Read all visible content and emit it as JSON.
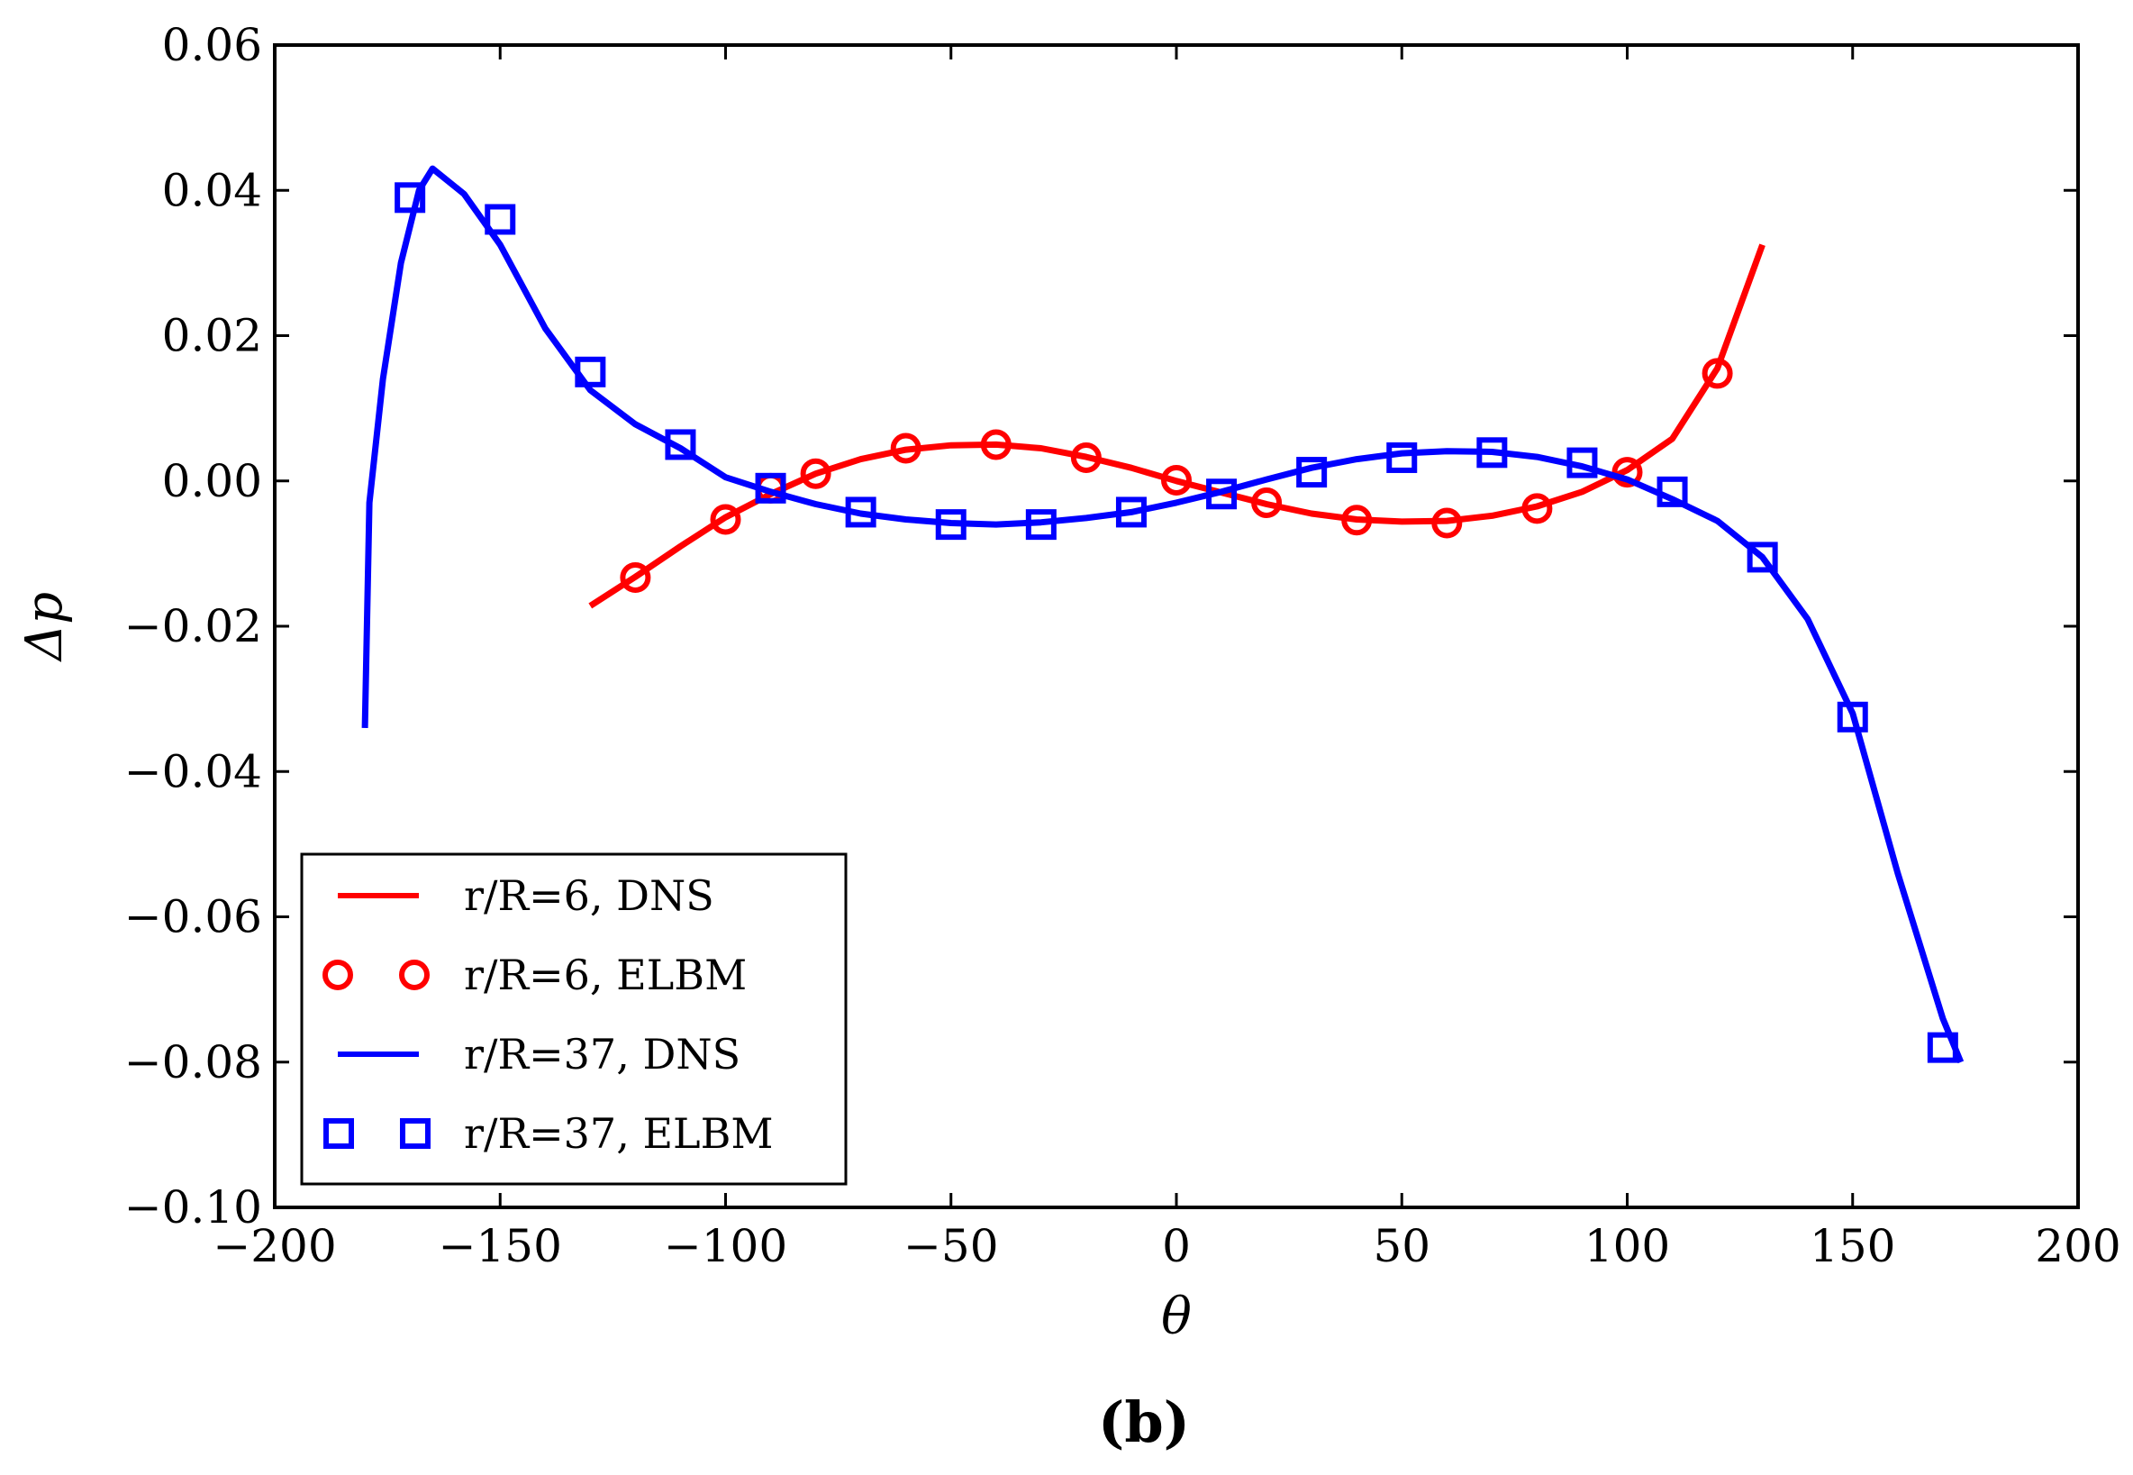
{
  "caption": "(b)",
  "chart_data": {
    "type": "line",
    "title": "",
    "xlabel": "θ",
    "ylabel": "Δp",
    "xlim": [
      -200,
      200
    ],
    "ylim": [
      -0.1,
      0.06
    ],
    "xticks": [
      -200,
      -150,
      -100,
      -50,
      0,
      50,
      100,
      150,
      200
    ],
    "xtick_labels": [
      "−200",
      "−150",
      "−100",
      "−50",
      "0",
      "50",
      "100",
      "150",
      "200"
    ],
    "yticks": [
      0.06,
      0.04,
      0.02,
      0.0,
      -0.02,
      -0.04,
      -0.06,
      -0.08,
      -0.1
    ],
    "ytick_labels": [
      "0.06",
      "0.04",
      "0.02",
      "0.00",
      "−0.02",
      "−0.04",
      "−0.06",
      "−0.08",
      "−0.10"
    ],
    "grid": false,
    "legend_position": "lower-left",
    "series": [
      {
        "name": "r/R=6, DNS",
        "style": "line",
        "color": "#ff0000",
        "x": [
          -130,
          -120,
          -110,
          -100,
          -90,
          -80,
          -70,
          -60,
          -50,
          -40,
          -30,
          -20,
          -10,
          0,
          10,
          20,
          30,
          40,
          50,
          60,
          70,
          80,
          90,
          100,
          110,
          120,
          130
        ],
        "y": [
          -0.0172,
          -0.0132,
          -0.009,
          -0.005,
          -0.0018,
          0.001,
          0.003,
          0.0043,
          0.0049,
          0.005,
          0.0045,
          0.0033,
          0.0018,
          0.0,
          -0.0016,
          -0.0032,
          -0.0045,
          -0.0053,
          -0.0056,
          -0.0055,
          -0.0048,
          -0.0035,
          -0.0015,
          0.0015,
          0.0058,
          0.0155,
          0.0325
        ]
      },
      {
        "name": "r/R=6, ELBM",
        "style": "circle",
        "color": "#ff0000",
        "x": [
          -120,
          -100,
          -90,
          -80,
          -60,
          -40,
          -20,
          0,
          20,
          40,
          60,
          80,
          100,
          120
        ],
        "y": [
          -0.0133,
          -0.0053,
          -0.001,
          0.001,
          0.0045,
          0.005,
          0.0032,
          0.0001,
          -0.003,
          -0.0054,
          -0.0058,
          -0.0038,
          0.0012,
          0.0148
        ]
      },
      {
        "name": "r/R=37, DNS",
        "style": "line",
        "color": "#0000ff",
        "x": [
          -180,
          -179,
          -176,
          -172,
          -168,
          -165,
          -162,
          -158,
          -150,
          -140,
          -130,
          -120,
          -110,
          -100,
          -90,
          -80,
          -70,
          -60,
          -50,
          -40,
          -30,
          -20,
          -10,
          0,
          10,
          20,
          30,
          40,
          50,
          60,
          70,
          80,
          90,
          100,
          110,
          120,
          130,
          140,
          150,
          160,
          170,
          174
        ],
        "y": [
          -0.034,
          -0.003,
          0.014,
          0.03,
          0.04,
          0.043,
          0.0415,
          0.0395,
          0.0325,
          0.021,
          0.0125,
          0.0078,
          0.0045,
          0.0005,
          -0.0015,
          -0.0032,
          -0.0045,
          -0.0053,
          -0.0058,
          -0.006,
          -0.0057,
          -0.0051,
          -0.0043,
          -0.003,
          -0.0015,
          0.0002,
          0.0018,
          0.003,
          0.0038,
          0.0041,
          0.004,
          0.0033,
          0.002,
          0.0002,
          -0.0025,
          -0.0055,
          -0.0105,
          -0.019,
          -0.032,
          -0.054,
          -0.074,
          -0.08
        ]
      },
      {
        "name": "r/R=37, ELBM",
        "style": "square",
        "color": "#0000ff",
        "x": [
          -170,
          -150,
          -130,
          -110,
          -90,
          -70,
          -50,
          -30,
          -10,
          10,
          30,
          50,
          70,
          90,
          110,
          130,
          150,
          170
        ],
        "y": [
          0.039,
          0.036,
          0.015,
          0.005,
          -0.001,
          -0.0043,
          -0.006,
          -0.006,
          -0.0043,
          -0.0018,
          0.0012,
          0.0032,
          0.0039,
          0.0025,
          -0.0015,
          -0.0105,
          -0.0325,
          -0.078
        ]
      }
    ]
  }
}
